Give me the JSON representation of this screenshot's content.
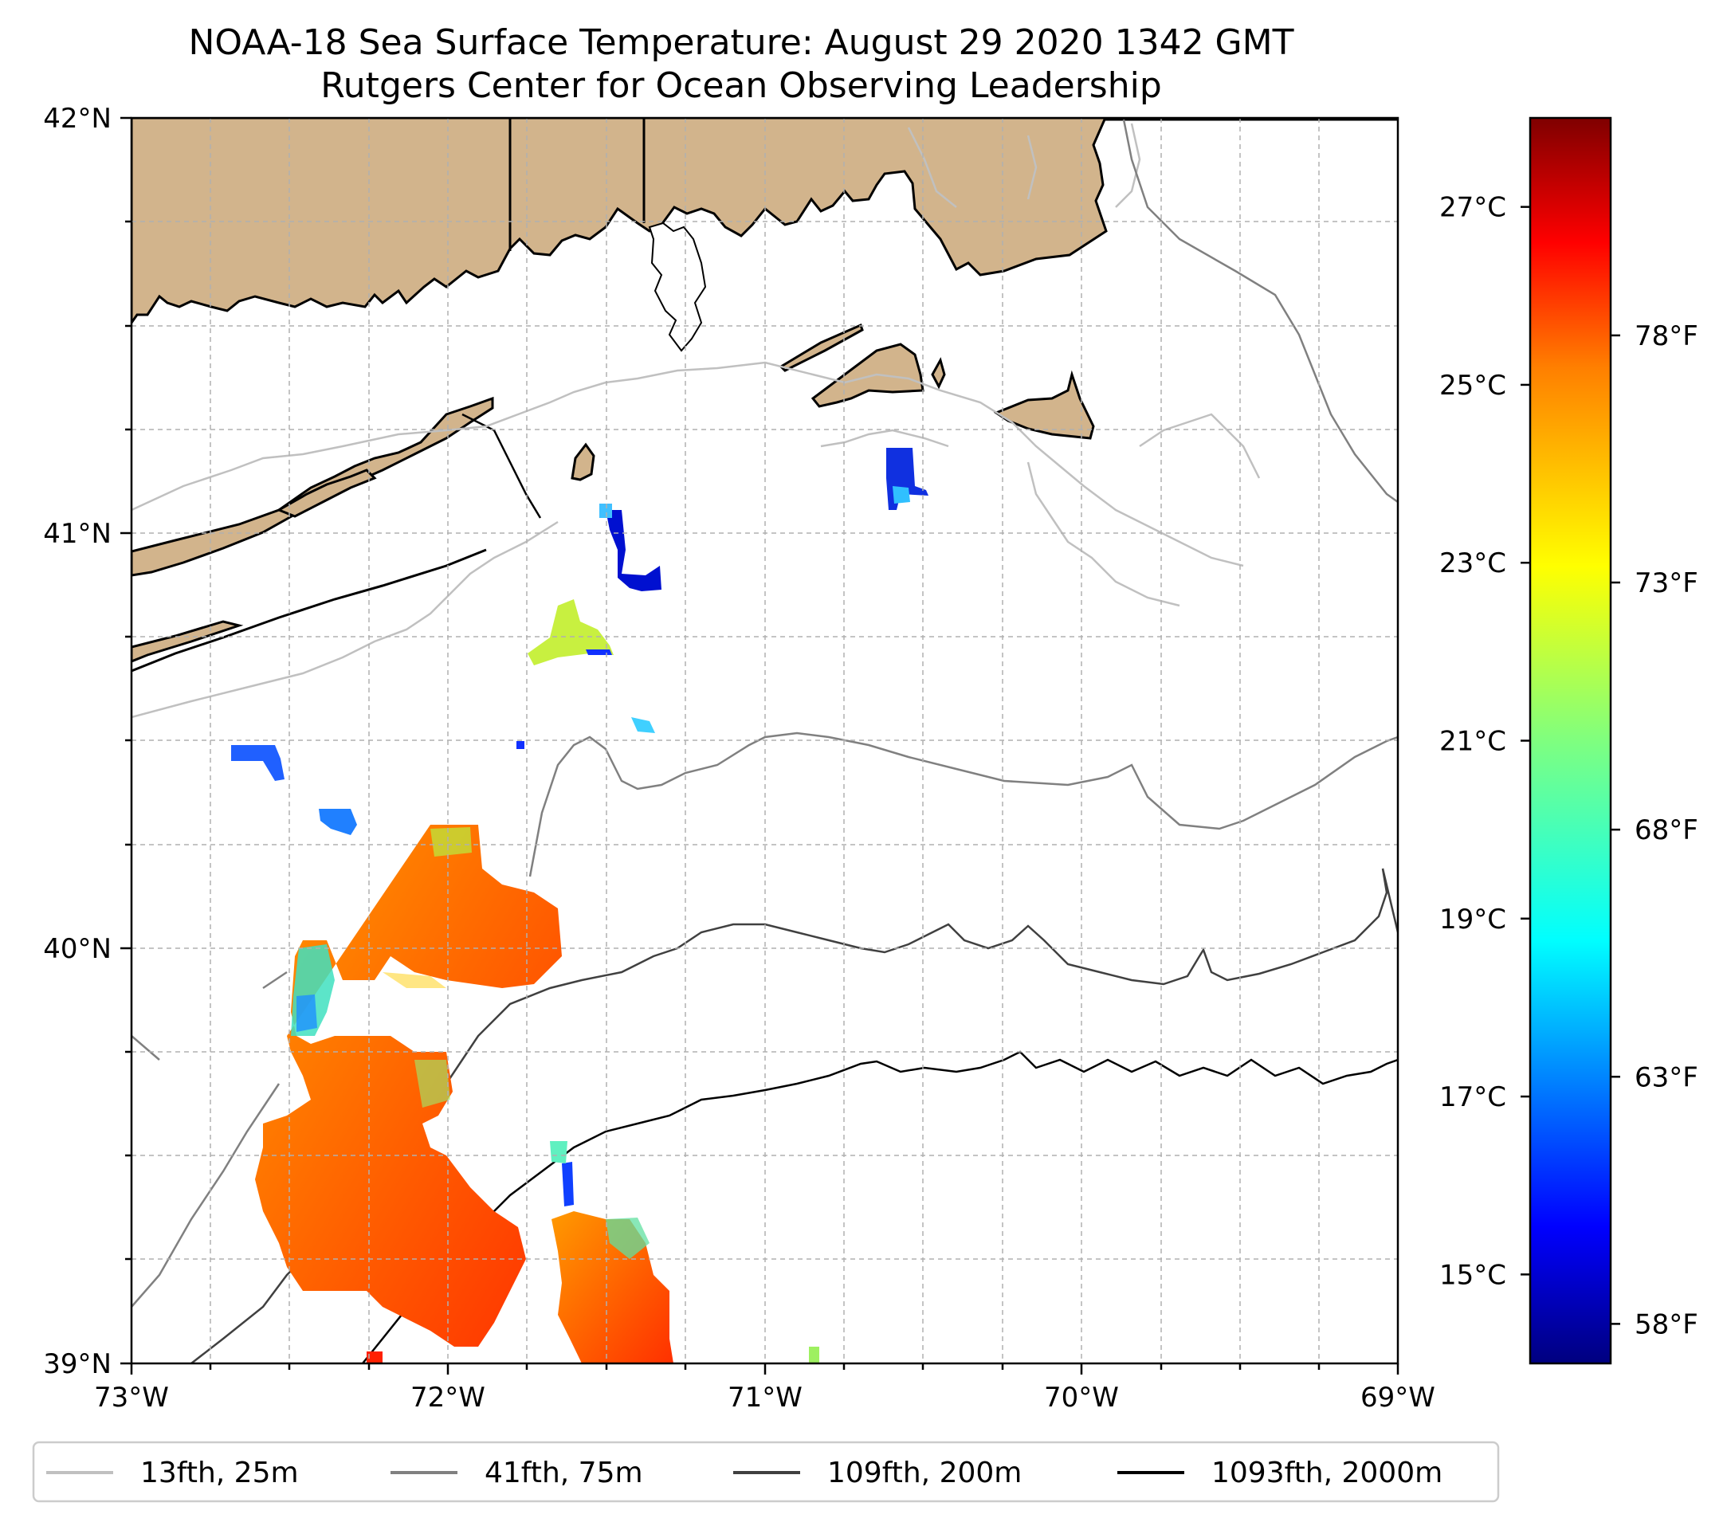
{
  "title": {
    "line1": "NOAA-18 Sea Surface Temperature: August 29 2020 1342 GMT",
    "line2": "Rutgers Center for Ocean Observing Leadership"
  },
  "map": {
    "lon_range": [
      -73,
      -69
    ],
    "lat_range": [
      39,
      42
    ],
    "x_ticks": [
      "73°W",
      "72°W",
      "71°W",
      "70°W",
      "69°W"
    ],
    "y_ticks": [
      "42°N",
      "41°N",
      "40°N",
      "39°N"
    ],
    "land_color": "#d2b48c",
    "ocean_color": "#ffffff"
  },
  "colorbar": {
    "celsius_ticks": [
      "27°C",
      "25°C",
      "23°C",
      "21°C",
      "19°C",
      "17°C",
      "15°C"
    ],
    "celsius_values": [
      27,
      25,
      23,
      21,
      19,
      17,
      15
    ],
    "fahrenheit_ticks": [
      "78°F",
      "73°F",
      "68°F",
      "63°F",
      "58°F"
    ],
    "fahrenheit_values": [
      78,
      73,
      68,
      63,
      58
    ],
    "range_celsius": [
      14,
      28
    ],
    "colormap": [
      "#00007f",
      "#0000ff",
      "#007fff",
      "#00ffff",
      "#7fff7f",
      "#ffff00",
      "#ff7f00",
      "#ff0000",
      "#7f0000"
    ]
  },
  "legend": {
    "items": [
      {
        "label": "13fth, 25m",
        "color": "#c0c0c0"
      },
      {
        "label": "41fth, 75m",
        "color": "#808080"
      },
      {
        "label": "109fth, 200m",
        "color": "#404040"
      },
      {
        "label": "1093fth, 2000m",
        "color": "#000000"
      }
    ]
  }
}
